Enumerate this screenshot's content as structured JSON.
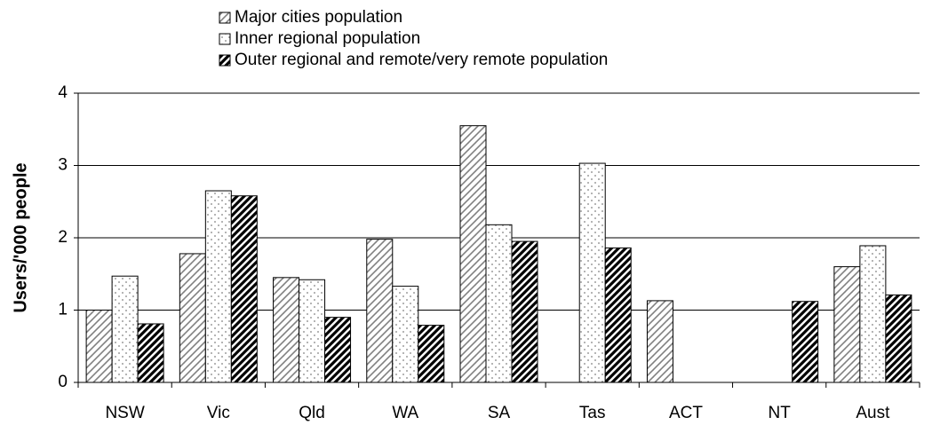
{
  "chart_data": {
    "type": "bar",
    "y_label": "Users/'000 people",
    "categories": [
      "NSW",
      "Vic",
      "Qld",
      "WA",
      "SA",
      "Tas",
      "ACT",
      "NT",
      "Aust"
    ],
    "series": [
      {
        "name": "Major cities population",
        "color": "#808080",
        "pattern": "hatch-light",
        "values": [
          1.0,
          1.78,
          1.45,
          1.98,
          3.55,
          null,
          1.13,
          null,
          1.6
        ]
      },
      {
        "name": "Inner regional population",
        "color": "#808080",
        "pattern": "dots",
        "values": [
          1.47,
          2.65,
          1.42,
          1.33,
          2.18,
          3.03,
          null,
          null,
          1.89
        ]
      },
      {
        "name": "Outer regional and remote/very remote population",
        "color": "#000000",
        "pattern": "hatch-dark",
        "values": [
          0.81,
          2.58,
          0.9,
          0.79,
          1.95,
          1.86,
          null,
          1.12,
          1.21
        ]
      }
    ],
    "ylim": [
      0,
      4
    ],
    "yticks": [
      0,
      1,
      2,
      3,
      4
    ],
    "grid": true
  }
}
